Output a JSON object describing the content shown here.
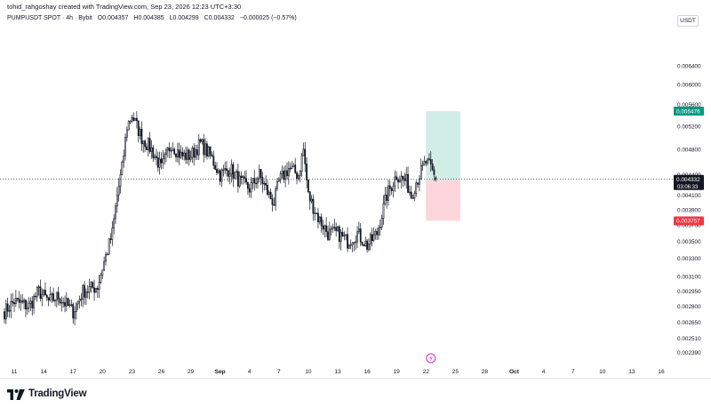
{
  "header": {
    "author": "tohid_rahgoshay created with TradingView.com, Sep 23, 2026 12:23 UTC+3:30",
    "symbol": "PUMPUSDT SPOT · 4h · Bybit",
    "open": "O0.004357",
    "high": "H0.004385",
    "low": "L0.004299",
    "close": "C0.004332",
    "change": "−0.000025 (−0.57%)",
    "currency": "USDT"
  },
  "branding": {
    "name": "TradingView"
  },
  "colors": {
    "candle": "#131722",
    "long_zone": "#d2ede6",
    "short_zone": "#fcd6dc",
    "target_badge": "#089981",
    "stop_badge": "#f23645",
    "entry_badge": "#787b86",
    "price_badge": "#131722",
    "event_icon": "#d22ec8"
  },
  "chart_data": {
    "type": "candlestick",
    "symbol": "PUMPUSDT",
    "timeframe": "4h",
    "exchange": "Bybit",
    "y_scale": "log",
    "ylim": [
      0.00228,
      0.0071
    ],
    "y_ticks": [
      "0.002390",
      "0.002510",
      "0.002650",
      "0.002800",
      "0.002950",
      "0.003100",
      "0.003300",
      "0.003500",
      "0.003700",
      "0.003900",
      "0.004100",
      "0.004400",
      "0.004800",
      "0.005200",
      "0.005600",
      "0.006000",
      "0.006400"
    ],
    "x_ticks": [
      "11",
      "14",
      "17",
      "20",
      "23",
      "26",
      "29",
      "Sep",
      "4",
      "7",
      "10",
      "13",
      "16",
      "19",
      "22",
      "25",
      "28",
      "Oct",
      "4",
      "7",
      "10",
      "13",
      "16"
    ],
    "x_tick_dates": [
      "2026-08-11",
      "2026-08-14",
      "2026-08-17",
      "2026-08-20",
      "2026-08-23",
      "2026-08-26",
      "2026-08-29",
      "2026-09-01",
      "2026-09-04",
      "2026-09-07",
      "2026-09-10",
      "2026-09-13",
      "2026-09-16",
      "2026-09-19",
      "2026-09-22",
      "2026-09-25",
      "2026-09-28",
      "2026-10-01",
      "2026-10-04",
      "2026-10-07",
      "2026-10-10",
      "2026-10-13",
      "2026-10-16"
    ],
    "x_range": [
      "2026-08-10",
      "2026-10-17"
    ],
    "last_candle": {
      "open": 0.004357,
      "high": 0.004385,
      "low": 0.004299,
      "close": 0.004332
    },
    "close_path": [
      [
        "2026-08-10T00:00",
        0.00275
      ],
      [
        "2026-08-11T00:00",
        0.00285
      ],
      [
        "2026-08-12T12:00",
        0.0028
      ],
      [
        "2026-08-13T12:00",
        0.00295
      ],
      [
        "2026-08-14T12:00",
        0.00285
      ],
      [
        "2026-08-15T12:00",
        0.0029
      ],
      [
        "2026-08-16T12:00",
        0.0028
      ],
      [
        "2026-08-17T00:00",
        0.00275
      ],
      [
        "2026-08-18T00:00",
        0.00295
      ],
      [
        "2026-08-19T12:00",
        0.003
      ],
      [
        "2026-08-20T00:00",
        0.0032
      ],
      [
        "2026-08-21T00:00",
        0.0036
      ],
      [
        "2026-08-21T12:00",
        0.0041
      ],
      [
        "2026-08-22T00:00",
        0.0045
      ],
      [
        "2026-08-22T12:00",
        0.0052
      ],
      [
        "2026-08-23T00:00",
        0.0054
      ],
      [
        "2026-08-23T12:00",
        0.0052
      ],
      [
        "2026-08-24T00:00",
        0.005
      ],
      [
        "2026-08-25T00:00",
        0.0048
      ],
      [
        "2026-08-26T00:00",
        0.0045
      ],
      [
        "2026-08-27T00:00",
        0.0049
      ],
      [
        "2026-08-28T00:00",
        0.0047
      ],
      [
        "2026-08-29T00:00",
        0.0047
      ],
      [
        "2026-08-30T00:00",
        0.0049
      ],
      [
        "2026-08-31T00:00",
        0.0047
      ],
      [
        "2026-09-01T00:00",
        0.0044
      ],
      [
        "2026-09-02T00:00",
        0.0045
      ],
      [
        "2026-09-03T00:00",
        0.0043
      ],
      [
        "2026-09-04T00:00",
        0.0042
      ],
      [
        "2026-09-05T00:00",
        0.0044
      ],
      [
        "2026-09-06T00:00",
        0.0041
      ],
      [
        "2026-09-06T12:00",
        0.004
      ],
      [
        "2026-09-07T00:00",
        0.0043
      ],
      [
        "2026-09-08T00:00",
        0.0045
      ],
      [
        "2026-09-09T00:00",
        0.0044
      ],
      [
        "2026-09-09T12:00",
        0.0048
      ],
      [
        "2026-09-10T00:00",
        0.0041
      ],
      [
        "2026-09-11T00:00",
        0.0038
      ],
      [
        "2026-09-12T00:00",
        0.0036
      ],
      [
        "2026-09-13T00:00",
        0.0036
      ],
      [
        "2026-09-14T00:00",
        0.0035
      ],
      [
        "2026-09-15T00:00",
        0.0036
      ],
      [
        "2026-09-16T00:00",
        0.00345
      ],
      [
        "2026-09-17T00:00",
        0.0036
      ],
      [
        "2026-09-18T00:00",
        0.0041
      ],
      [
        "2026-09-19T00:00",
        0.0044
      ],
      [
        "2026-09-20T00:00",
        0.0043
      ],
      [
        "2026-09-20T12:00",
        0.0041
      ],
      [
        "2026-09-21T00:00",
        0.0043
      ],
      [
        "2026-09-22T00:00",
        0.0046
      ],
      [
        "2026-09-22T12:00",
        0.0045
      ],
      [
        "2026-09-23T00:00",
        0.004332
      ]
    ],
    "current_price": {
      "value": "0.004332",
      "countdown": "03:06:33"
    },
    "position": {
      "type": "long",
      "start": "2026-09-22",
      "end": "2026-09-25T12:00",
      "entry": {
        "value": 0.004318,
        "label": "0.004318"
      },
      "target": {
        "value": 0.005476,
        "label": "0.005476"
      },
      "stop": {
        "value": 0.003757,
        "label": "0.003757"
      }
    }
  }
}
